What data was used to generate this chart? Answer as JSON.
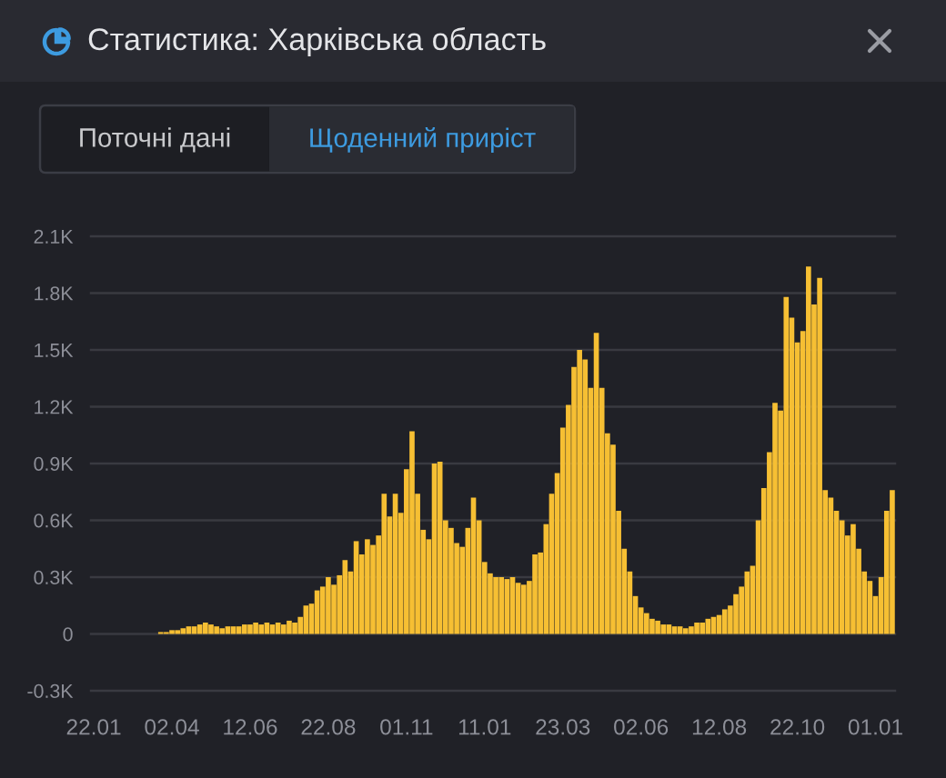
{
  "chart_data": {
    "type": "bar",
    "title": "Статистика: Харківська область",
    "annotations": [
      "Поточні дані",
      "Щоденний приріст"
    ],
    "color": "#f6bf33",
    "grid": "y",
    "ylim": [
      -300,
      2100
    ],
    "yticks": [
      {
        "value": -300,
        "label": "-0.3K"
      },
      0,
      {
        "value": 300,
        "label": "0.3K"
      },
      {
        "value": 600,
        "label": "0.6K"
      },
      {
        "value": 900,
        "label": "0.9K"
      },
      {
        "value": 1200,
        "label": "1.2K"
      },
      {
        "value": 1500,
        "label": "1.5K"
      },
      {
        "value": 1800,
        "label": "1.8K"
      },
      {
        "value": 2100,
        "label": "2.1K"
      }
    ],
    "categories": [
      "22.01",
      null,
      null,
      null,
      null,
      null,
      null,
      null,
      null,
      null,
      null,
      null,
      null,
      null,
      "02.04",
      null,
      null,
      null,
      null,
      null,
      null,
      null,
      null,
      null,
      null,
      null,
      null,
      null,
      "12.06",
      null,
      null,
      null,
      null,
      null,
      null,
      null,
      null,
      null,
      null,
      null,
      null,
      null,
      "22.08",
      null,
      null,
      null,
      null,
      null,
      null,
      null,
      null,
      null,
      null,
      null,
      null,
      null,
      "01.11",
      null,
      null,
      null,
      null,
      null,
      null,
      null,
      null,
      null,
      null,
      null,
      null,
      null,
      "11.01",
      null,
      null,
      null,
      null,
      null,
      null,
      null,
      null,
      null,
      null,
      null,
      null,
      null,
      "23.03",
      null,
      null,
      null,
      null,
      null,
      null,
      null,
      null,
      null,
      null,
      null,
      null,
      null,
      "02.06",
      null,
      null,
      null,
      null,
      null,
      null,
      null,
      null,
      null,
      null,
      null,
      null,
      null,
      "12.08",
      null,
      null,
      null,
      null,
      null,
      null,
      null,
      null,
      null,
      null,
      null,
      null,
      null,
      "22.10",
      null,
      null,
      null,
      null,
      null,
      null,
      null,
      null,
      null,
      null,
      null,
      null,
      null,
      "01.01",
      null,
      null,
      null
    ],
    "values": [
      null,
      null,
      null,
      null,
      null,
      null,
      null,
      null,
      null,
      null,
      null,
      null,
      10,
      10,
      20,
      20,
      30,
      40,
      40,
      50,
      60,
      50,
      40,
      30,
      40,
      40,
      40,
      50,
      50,
      60,
      50,
      60,
      50,
      60,
      50,
      70,
      60,
      90,
      150,
      160,
      230,
      250,
      300,
      260,
      310,
      390,
      330,
      490,
      420,
      500,
      470,
      520,
      740,
      620,
      740,
      640,
      870,
      1070,
      740,
      550,
      500,
      900,
      910,
      600,
      560,
      480,
      460,
      560,
      720,
      600,
      380,
      320,
      300,
      300,
      290,
      300,
      270,
      260,
      280,
      420,
      430,
      580,
      740,
      850,
      1090,
      1210,
      1410,
      1500,
      1450,
      1300,
      1590,
      1300,
      1060,
      1000,
      650,
      450,
      330,
      200,
      140,
      110,
      80,
      70,
      50,
      50,
      40,
      40,
      30,
      40,
      60,
      60,
      80,
      90,
      100,
      130,
      150,
      210,
      250,
      330,
      360,
      600,
      770,
      960,
      1220,
      1180,
      1780,
      1670,
      1540,
      1600,
      1940,
      1740,
      1880,
      760,
      720,
      650,
      600,
      520,
      580,
      450,
      330,
      280,
      200,
      300,
      650,
      760
    ]
  }
}
